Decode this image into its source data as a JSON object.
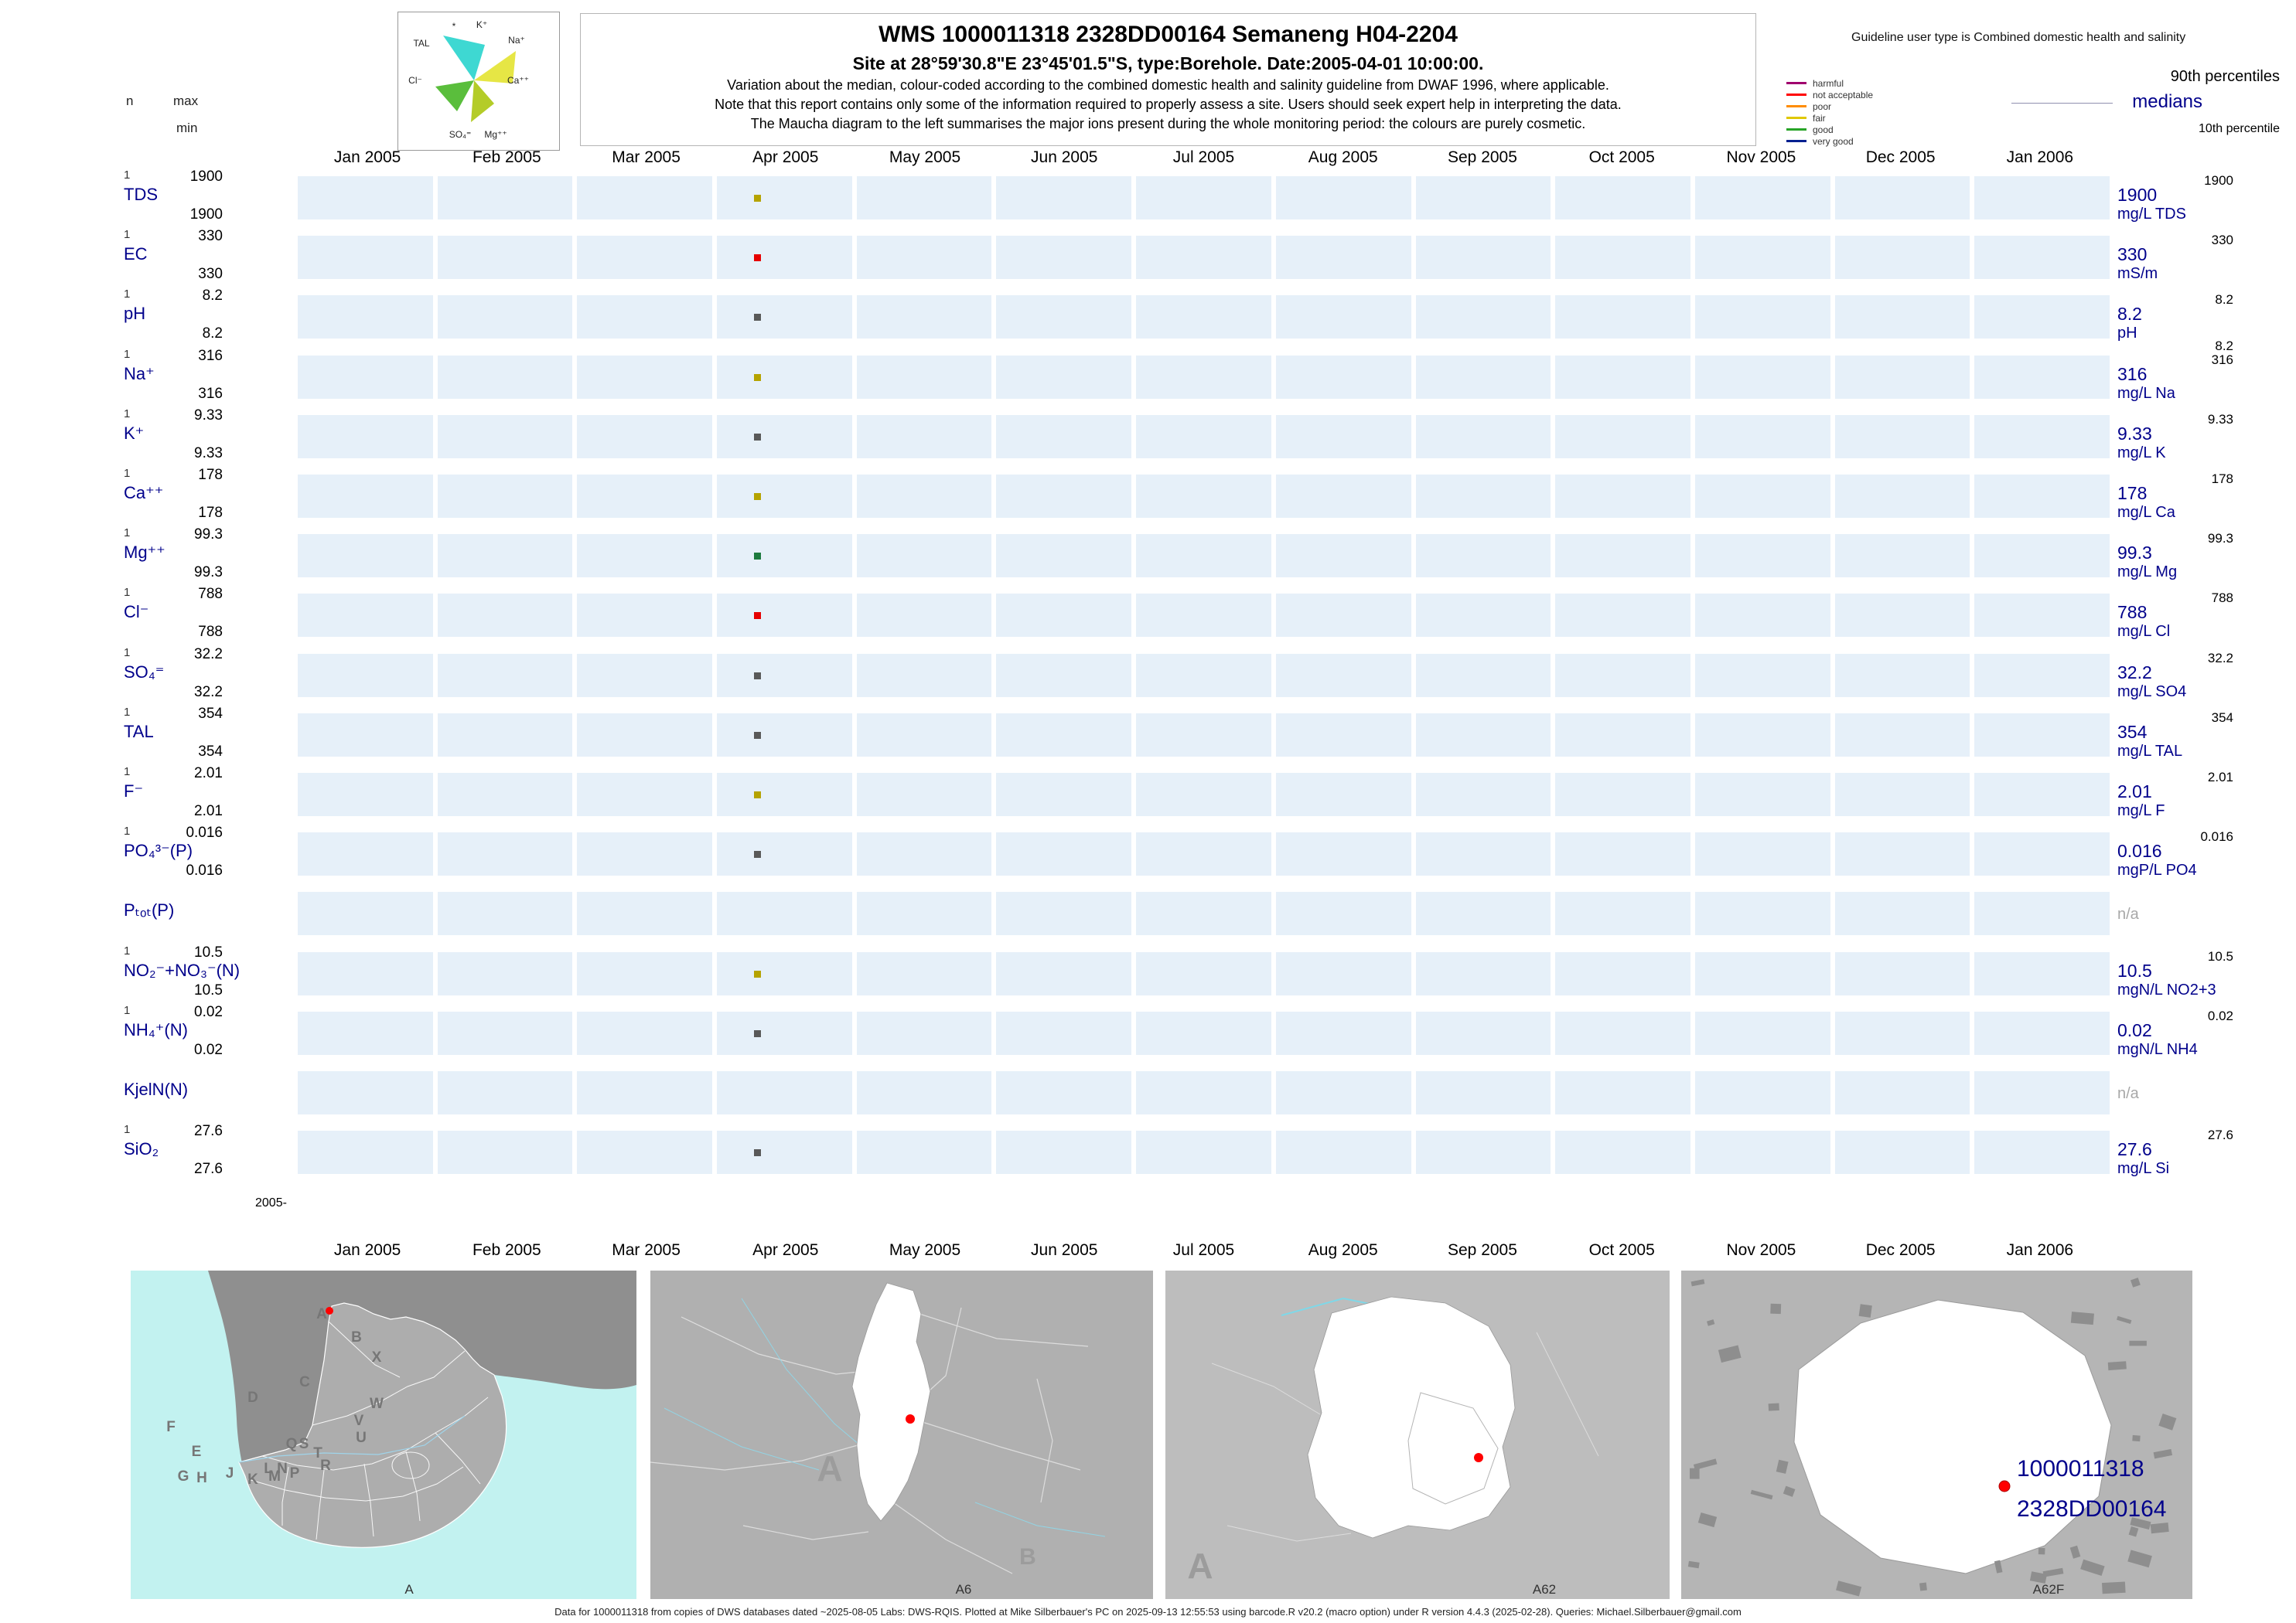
{
  "header": {
    "title": "WMS 1000011318 2328DD00164 Semaneng H04-2204",
    "subtitle": "Site at 28°59'30.8\"E 23°45'01.5\"S, type:Borehole. Date:2005-04-01 10:00:00.",
    "note1": "Variation about the median, colour-coded according to the combined domestic health and salinity guideline from DWAF 1996, where applicable.",
    "note2": "Note that this report contains only some of the information required to properly assess a site. Users should seek expert help in interpreting the data.",
    "note3": "The Maucha diagram to the left summarises the major ions present during the whole monitoring period: the colours are purely cosmetic.",
    "guideline_user_type": "Guideline user type is Combined domestic health and salinity",
    "col_n": "n",
    "col_max": "max",
    "col_min": "min",
    "legend_classes": [
      {
        "label": "harmful",
        "color": "#a0006e"
      },
      {
        "label": "not acceptable",
        "color": "#ff0000"
      },
      {
        "label": "poor",
        "color": "#ff8c00"
      },
      {
        "label": "fair",
        "color": "#e0c800"
      },
      {
        "label": "good",
        "color": "#28a428"
      },
      {
        "label": "very good",
        "color": "#002090"
      }
    ],
    "p90_label": "90th percentiles",
    "median_label": "medians",
    "p10_label": "10th percentile",
    "maucha": {
      "star": "*",
      "k": "K⁺",
      "na": "Na⁺",
      "tal": "TAL",
      "cl": "Cl⁻",
      "ca": "Ca⁺⁺",
      "so4": "SO₄⁼",
      "mg": "Mg⁺⁺"
    }
  },
  "axis": {
    "months": [
      "Jan 2005",
      "Feb 2005",
      "Mar 2005",
      "Apr 2005",
      "May 2005",
      "Jun 2005",
      "Jul 2005",
      "Aug 2005",
      "Sep 2005",
      "Oct 2005",
      "Nov 2005",
      "Dec 2005",
      "Jan 2006"
    ],
    "origin_label": "2005-"
  },
  "chart_data": {
    "type": "scatter",
    "x_categories": [
      "Jan 2005",
      "Feb 2005",
      "Mar 2005",
      "Apr 2005",
      "May 2005",
      "Jun 2005",
      "Jul 2005",
      "Aug 2005",
      "Sep 2005",
      "Oct 2005",
      "Nov 2005",
      "Dec 2005",
      "Jan 2006"
    ],
    "sample_date": "2005-04-01",
    "sample_month": "Apr 2005",
    "rows": [
      {
        "param": "TDS",
        "n": "1",
        "max": "1900",
        "min": "1900",
        "p90": "1900",
        "median": "1900",
        "unit": "mg/L TDS",
        "value": 1900,
        "color": "#b5a300"
      },
      {
        "param": "EC",
        "n": "1",
        "max": "330",
        "min": "330",
        "p90": "330",
        "median": "330",
        "unit": "mS/m",
        "value": 330,
        "color": "#e60000"
      },
      {
        "param": "pH",
        "n": "1",
        "max": "8.2",
        "min": "8.2",
        "p90": "8.2",
        "median": "8.2",
        "p10": "8.2",
        "unit": "pH",
        "value": 8.2,
        "color": "#595959"
      },
      {
        "param": "Na⁺",
        "n": "1",
        "max": "316",
        "min": "316",
        "p90": "316",
        "median": "316",
        "unit": "mg/L Na",
        "value": 316,
        "color": "#b5a300"
      },
      {
        "param": "K⁺",
        "n": "1",
        "max": "9.33",
        "min": "9.33",
        "p90": "9.33",
        "median": "9.33",
        "unit": "mg/L K",
        "value": 9.33,
        "color": "#595959"
      },
      {
        "param": "Ca⁺⁺",
        "n": "1",
        "max": "178",
        "min": "178",
        "p90": "178",
        "median": "178",
        "unit": "mg/L Ca",
        "value": 178,
        "color": "#b5a300"
      },
      {
        "param": "Mg⁺⁺",
        "n": "1",
        "max": "99.3",
        "min": "99.3",
        "p90": "99.3",
        "median": "99.3",
        "unit": "mg/L Mg",
        "value": 99.3,
        "color": "#1d7a3e"
      },
      {
        "param": "Cl⁻",
        "n": "1",
        "max": "788",
        "min": "788",
        "p90": "788",
        "median": "788",
        "unit": "mg/L Cl",
        "value": 788,
        "color": "#e60000"
      },
      {
        "param": "SO₄⁼",
        "n": "1",
        "max": "32.2",
        "min": "32.2",
        "p90": "32.2",
        "median": "32.2",
        "unit": "mg/L SO4",
        "value": 32.2,
        "color": "#595959"
      },
      {
        "param": "TAL",
        "n": "1",
        "max": "354",
        "min": "354",
        "p90": "354",
        "median": "354",
        "unit": "mg/L TAL",
        "value": 354,
        "color": "#595959"
      },
      {
        "param": "F⁻",
        "n": "1",
        "max": "2.01",
        "min": "2.01",
        "p90": "2.01",
        "median": "2.01",
        "unit": "mg/L F",
        "value": 2.01,
        "color": "#b5a300"
      },
      {
        "param": "PO₄³⁻(P)",
        "n": "1",
        "max": "0.016",
        "min": "0.016",
        "p90": "0.016",
        "median": "0.016",
        "unit": "mgP/L PO4",
        "value": 0.016,
        "color": "#595959"
      },
      {
        "param": "Pₜₒₜ(P)",
        "na": "n/a"
      },
      {
        "param": "NO₂⁻+NO₃⁻(N)",
        "n": "1",
        "max": "10.5",
        "min": "10.5",
        "p90": "10.5",
        "median": "10.5",
        "unit": "mgN/L NO2+3",
        "value": 10.5,
        "color": "#b5a300"
      },
      {
        "param": "NH₄⁺(N)",
        "n": "1",
        "max": "0.02",
        "min": "0.02",
        "p90": "0.02",
        "median": "0.02",
        "unit": "mgN/L NH4",
        "value": 0.02,
        "color": "#595959"
      },
      {
        "param": "KjelN(N)",
        "na": "n/a"
      },
      {
        "param": "SiO₂",
        "n": "1",
        "max": "27.6",
        "min": "27.6",
        "p90": "27.6",
        "median": "27.6",
        "unit": "mg/L Si",
        "value": 27.6,
        "color": "#595959"
      }
    ]
  },
  "maps": [
    {
      "caption": "A",
      "regions": [
        "A",
        "B",
        "X",
        "C",
        "W",
        "D",
        "V",
        "U",
        "F",
        "E",
        "Q",
        "S",
        "T",
        "R",
        "L",
        "N",
        "J",
        "M",
        "P",
        "G",
        "H",
        "K"
      ]
    },
    {
      "caption": "A6",
      "labels": [
        "A",
        "B"
      ]
    },
    {
      "caption": "A62",
      "labels": [
        "A"
      ]
    },
    {
      "caption": "A62F",
      "site_labels": [
        "1000011318",
        "2328DD00164"
      ]
    }
  ],
  "footer": "Data for 1000011318 from copies of DWS databases dated ~2025-08-05 Labs: DWS-RQIS. Plotted at Mike Silberbauer's PC on 2025-09-13 12:55:53 using barcode.R v20.2 (macro option) under R version 4.4.3 (2025-02-28). Queries: Michael.Silberbauer@gmail.com"
}
